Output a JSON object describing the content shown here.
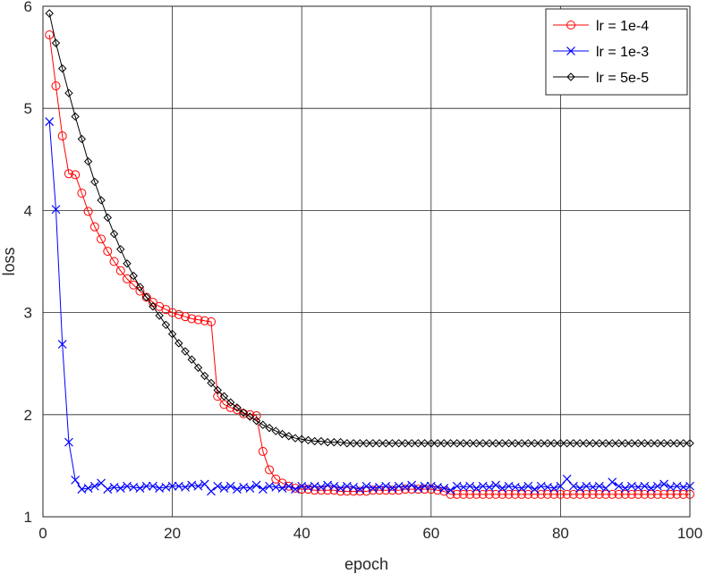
{
  "chart_data": {
    "type": "line",
    "xlabel": "epoch",
    "ylabel": "loss",
    "xlim": [
      0,
      100
    ],
    "ylim": [
      1,
      6
    ],
    "xticks": [
      0,
      20,
      40,
      60,
      80,
      100
    ],
    "yticks": [
      1,
      2,
      3,
      4,
      5,
      6
    ],
    "grid": true,
    "legend_position": "top-right",
    "series": [
      {
        "name": "lr = 1e-4",
        "color": "#ff0000",
        "marker": "circle",
        "x": [
          1,
          2,
          3,
          4,
          5,
          6,
          7,
          8,
          9,
          10,
          11,
          12,
          13,
          14,
          15,
          16,
          17,
          18,
          19,
          20,
          21,
          22,
          23,
          24,
          25,
          26,
          27,
          28,
          29,
          30,
          31,
          32,
          33,
          34,
          35,
          36,
          37,
          38,
          39,
          40,
          41,
          42,
          43,
          44,
          45,
          46,
          47,
          48,
          49,
          50,
          51,
          52,
          53,
          54,
          55,
          56,
          57,
          58,
          59,
          60,
          61,
          62,
          63,
          64,
          65,
          66,
          67,
          68,
          69,
          70,
          71,
          72,
          73,
          74,
          75,
          76,
          77,
          78,
          79,
          80,
          81,
          82,
          83,
          84,
          85,
          86,
          87,
          88,
          89,
          90,
          91,
          92,
          93,
          94,
          95,
          96,
          97,
          98,
          99,
          100
        ],
        "y": [
          5.72,
          5.22,
          4.73,
          4.36,
          4.35,
          4.17,
          3.99,
          3.84,
          3.72,
          3.6,
          3.5,
          3.41,
          3.33,
          3.27,
          3.21,
          3.15,
          3.1,
          3.06,
          3.03,
          3.0,
          2.98,
          2.96,
          2.94,
          2.93,
          2.92,
          2.91,
          2.18,
          2.1,
          2.07,
          2.05,
          2.01,
          2.0,
          1.99,
          1.64,
          1.46,
          1.37,
          1.33,
          1.3,
          1.28,
          1.27,
          1.27,
          1.26,
          1.26,
          1.26,
          1.26,
          1.25,
          1.25,
          1.25,
          1.25,
          1.25,
          1.26,
          1.26,
          1.26,
          1.26,
          1.26,
          1.27,
          1.27,
          1.27,
          1.27,
          1.27,
          1.26,
          1.25,
          1.22,
          1.22,
          1.22,
          1.22,
          1.22,
          1.22,
          1.22,
          1.22,
          1.22,
          1.22,
          1.22,
          1.22,
          1.22,
          1.22,
          1.22,
          1.22,
          1.22,
          1.22,
          1.22,
          1.22,
          1.22,
          1.22,
          1.22,
          1.22,
          1.22,
          1.22,
          1.22,
          1.22,
          1.22,
          1.22,
          1.22,
          1.22,
          1.22,
          1.22,
          1.22,
          1.22,
          1.22,
          1.22
        ]
      },
      {
        "name": "lr = 1e-3",
        "color": "#0000ff",
        "marker": "x",
        "x": [
          1,
          2,
          3,
          4,
          5,
          6,
          7,
          8,
          9,
          10,
          11,
          12,
          13,
          14,
          15,
          16,
          17,
          18,
          19,
          20,
          21,
          22,
          23,
          24,
          25,
          26,
          27,
          28,
          29,
          30,
          31,
          32,
          33,
          34,
          35,
          36,
          37,
          38,
          39,
          40,
          41,
          42,
          43,
          44,
          45,
          46,
          47,
          48,
          49,
          50,
          51,
          52,
          53,
          54,
          55,
          56,
          57,
          58,
          59,
          60,
          61,
          62,
          63,
          64,
          65,
          66,
          67,
          68,
          69,
          70,
          71,
          72,
          73,
          74,
          75,
          76,
          77,
          78,
          79,
          80,
          81,
          82,
          83,
          84,
          85,
          86,
          87,
          88,
          89,
          90,
          91,
          92,
          93,
          94,
          95,
          96,
          97,
          98,
          99,
          100
        ],
        "y": [
          4.87,
          4.01,
          2.69,
          1.73,
          1.36,
          1.27,
          1.28,
          1.3,
          1.33,
          1.27,
          1.29,
          1.28,
          1.3,
          1.29,
          1.28,
          1.3,
          1.3,
          1.28,
          1.29,
          1.3,
          1.3,
          1.29,
          1.31,
          1.3,
          1.32,
          1.25,
          1.3,
          1.28,
          1.3,
          1.27,
          1.29,
          1.28,
          1.31,
          1.27,
          1.3,
          1.29,
          1.28,
          1.3,
          1.27,
          1.3,
          1.29,
          1.3,
          1.29,
          1.31,
          1.3,
          1.28,
          1.3,
          1.29,
          1.27,
          1.3,
          1.28,
          1.29,
          1.3,
          1.28,
          1.3,
          1.29,
          1.31,
          1.28,
          1.3,
          1.3,
          1.29,
          1.28,
          1.26,
          1.3,
          1.29,
          1.3,
          1.28,
          1.3,
          1.29,
          1.31,
          1.28,
          1.3,
          1.29,
          1.28,
          1.3,
          1.27,
          1.3,
          1.29,
          1.28,
          1.3,
          1.37,
          1.3,
          1.28,
          1.3,
          1.29,
          1.3,
          1.28,
          1.34,
          1.3,
          1.28,
          1.3,
          1.29,
          1.3,
          1.28,
          1.3,
          1.32,
          1.29,
          1.3,
          1.29,
          1.3
        ]
      },
      {
        "name": "lr = 5e-5",
        "color": "#000000",
        "marker": "diamond",
        "x": [
          1,
          2,
          3,
          4,
          5,
          6,
          7,
          8,
          9,
          10,
          11,
          12,
          13,
          14,
          15,
          16,
          17,
          18,
          19,
          20,
          21,
          22,
          23,
          24,
          25,
          26,
          27,
          28,
          29,
          30,
          31,
          32,
          33,
          34,
          35,
          36,
          37,
          38,
          39,
          40,
          41,
          42,
          43,
          44,
          45,
          46,
          47,
          48,
          49,
          50,
          51,
          52,
          53,
          54,
          55,
          56,
          57,
          58,
          59,
          60,
          61,
          62,
          63,
          64,
          65,
          66,
          67,
          68,
          69,
          70,
          71,
          72,
          73,
          74,
          75,
          76,
          77,
          78,
          79,
          80,
          81,
          82,
          83,
          84,
          85,
          86,
          87,
          88,
          89,
          90,
          91,
          92,
          93,
          94,
          95,
          96,
          97,
          98,
          99,
          100
        ],
        "y": [
          5.93,
          5.64,
          5.39,
          5.15,
          4.92,
          4.7,
          4.48,
          4.28,
          4.1,
          3.93,
          3.77,
          3.62,
          3.48,
          3.36,
          3.25,
          3.15,
          3.06,
          2.97,
          2.88,
          2.79,
          2.7,
          2.62,
          2.54,
          2.46,
          2.38,
          2.31,
          2.24,
          2.18,
          2.12,
          2.07,
          2.02,
          1.98,
          1.94,
          1.9,
          1.87,
          1.84,
          1.81,
          1.79,
          1.77,
          1.76,
          1.75,
          1.74,
          1.74,
          1.73,
          1.73,
          1.73,
          1.72,
          1.72,
          1.72,
          1.72,
          1.72,
          1.72,
          1.72,
          1.72,
          1.72,
          1.72,
          1.72,
          1.72,
          1.72,
          1.72,
          1.72,
          1.72,
          1.72,
          1.72,
          1.72,
          1.72,
          1.72,
          1.72,
          1.72,
          1.72,
          1.72,
          1.72,
          1.72,
          1.72,
          1.72,
          1.72,
          1.72,
          1.72,
          1.72,
          1.72,
          1.72,
          1.72,
          1.72,
          1.72,
          1.72,
          1.72,
          1.72,
          1.72,
          1.72,
          1.72,
          1.72,
          1.72,
          1.72,
          1.72,
          1.72,
          1.72,
          1.72,
          1.72,
          1.72,
          1.72
        ]
      }
    ]
  }
}
